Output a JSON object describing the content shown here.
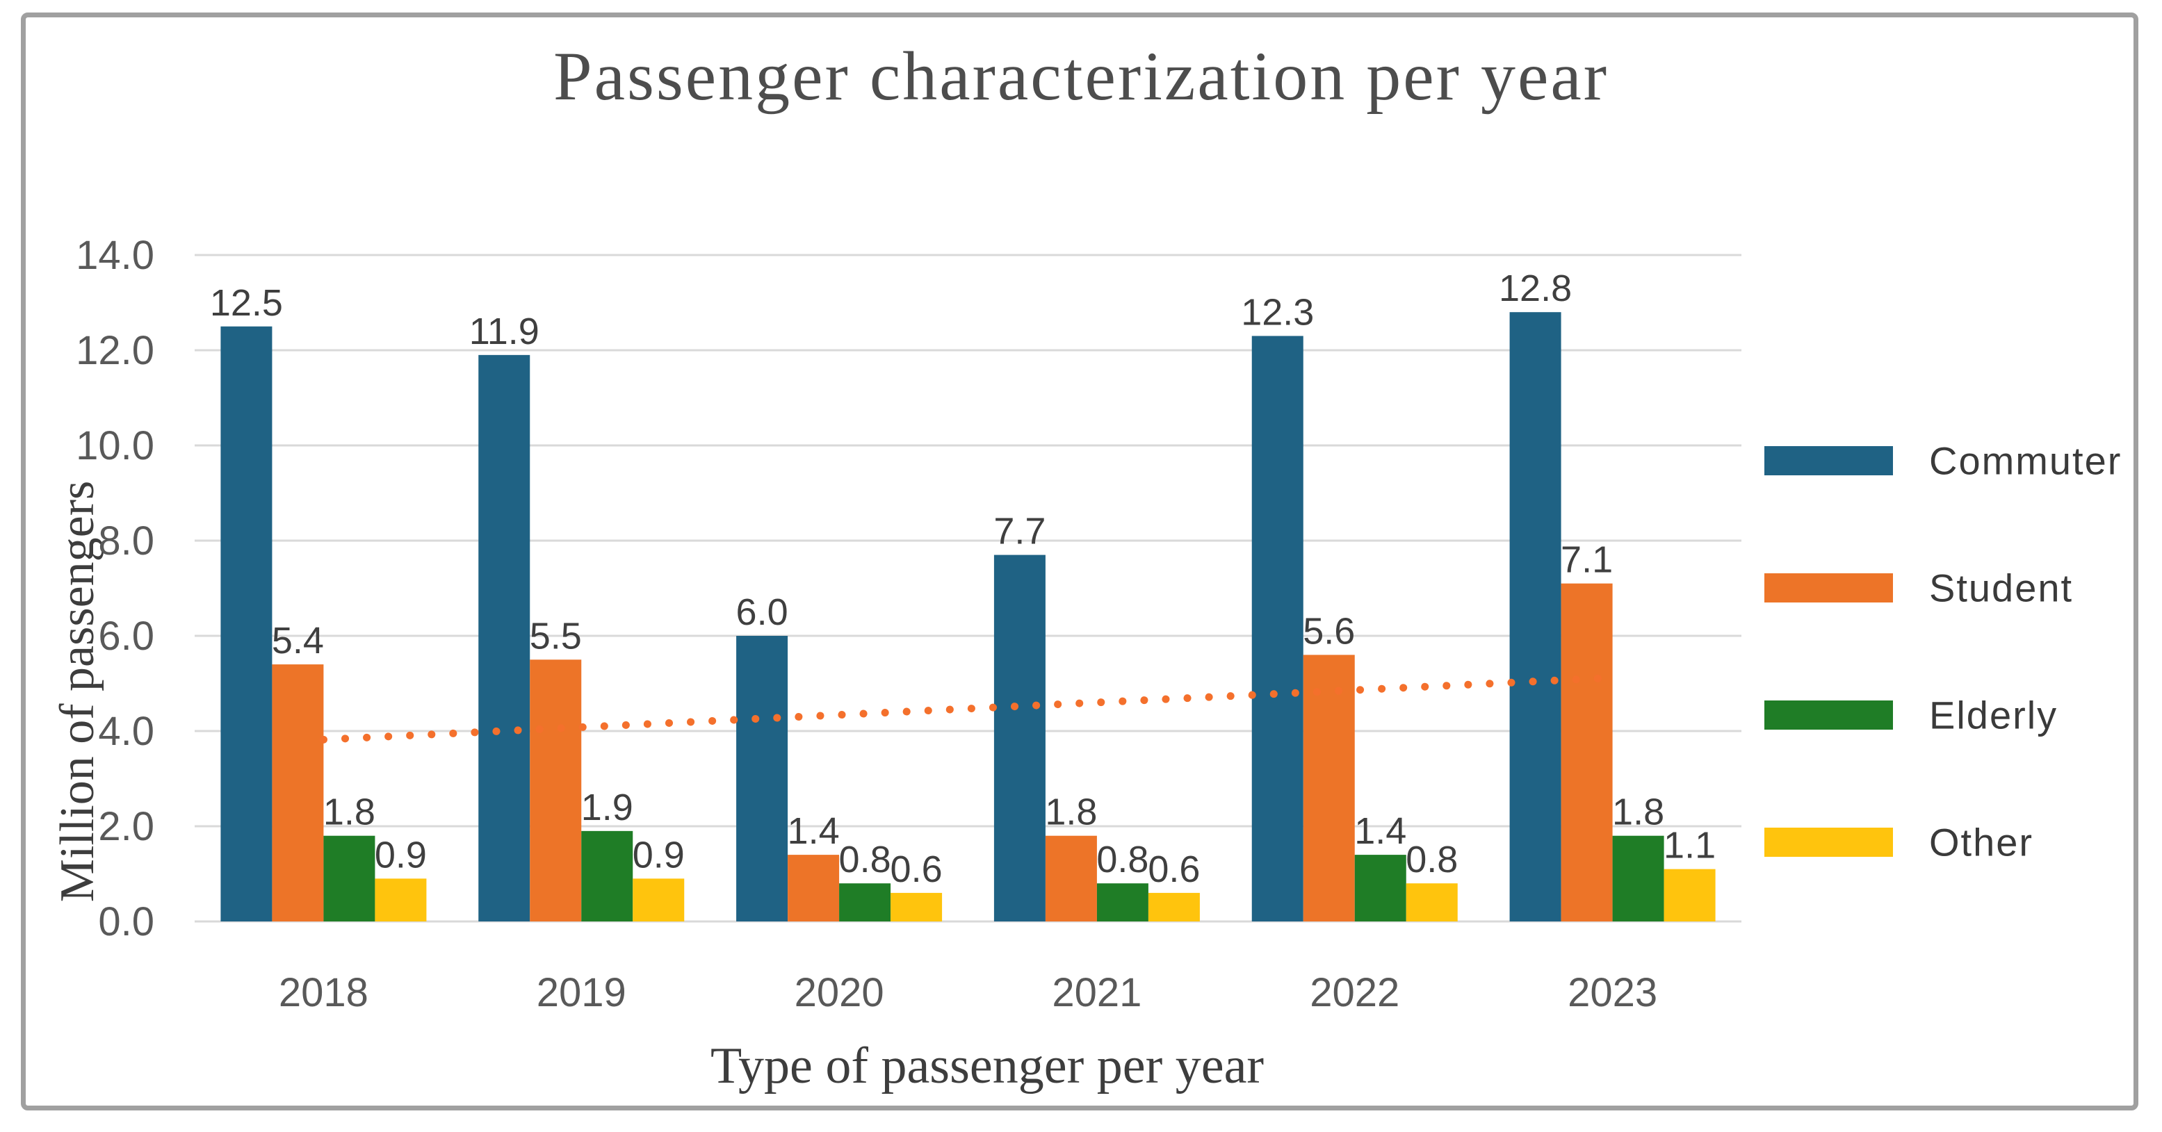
{
  "frame": {
    "border_color": "#a0a0a0"
  },
  "chart_data": {
    "type": "bar",
    "title": "Passenger characterization per year",
    "xlabel": "Type of passenger per year",
    "ylabel": "Million of passengers",
    "categories": [
      "2018",
      "2019",
      "2020",
      "2021",
      "2022",
      "2023"
    ],
    "series": [
      {
        "name": "Commuter",
        "color": "#1f6284",
        "values": [
          12.5,
          11.9,
          6.0,
          7.7,
          12.3,
          12.8
        ]
      },
      {
        "name": "Student",
        "color": "#ed7428",
        "values": [
          5.4,
          5.5,
          1.4,
          1.8,
          5.6,
          7.1
        ]
      },
      {
        "name": "Elderly",
        "color": "#1f7d26",
        "values": [
          1.8,
          1.9,
          0.8,
          0.8,
          1.4,
          1.8
        ]
      },
      {
        "name": "Other",
        "color": "#ffc40d",
        "values": [
          0.9,
          0.9,
          0.6,
          0.6,
          0.8,
          1.1
        ]
      }
    ],
    "ylim": [
      0,
      14
    ],
    "ytick_step": 2,
    "ytick_labels": [
      "0.0",
      "2.0",
      "4.0",
      "6.0",
      "8.0",
      "10.0",
      "12.0",
      "14.0"
    ],
    "grid": true,
    "gridline_color": "#d9d9d9",
    "value_label_decimals": 1,
    "legend_position": "right",
    "trendline": {
      "series": "Student",
      "type": "linear",
      "style": "dotted",
      "color": "#f4702c",
      "start_value": 3.82,
      "end_value": 5.12
    }
  }
}
